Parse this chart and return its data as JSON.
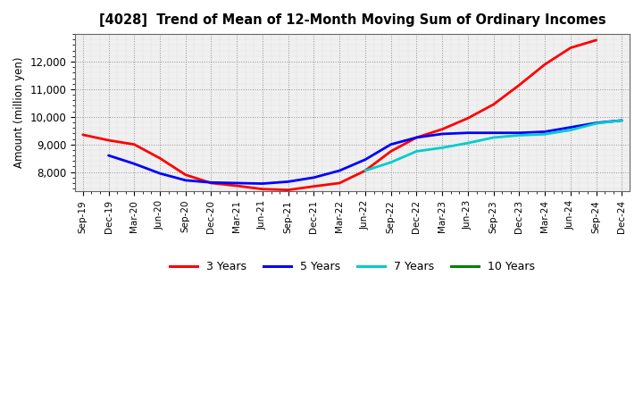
{
  "title": "[4028]  Trend of Mean of 12-Month Moving Sum of Ordinary Incomes",
  "ylabel": "Amount (million yen)",
  "ylim": [
    7300,
    13000
  ],
  "yticks": [
    8000,
    9000,
    10000,
    11000,
    12000
  ],
  "x_labels": [
    "Sep-19",
    "Dec-19",
    "Mar-20",
    "Jun-20",
    "Sep-20",
    "Dec-20",
    "Mar-21",
    "Jun-21",
    "Sep-21",
    "Dec-21",
    "Mar-22",
    "Jun-22",
    "Sep-22",
    "Dec-22",
    "Mar-23",
    "Jun-23",
    "Sep-23",
    "Dec-23",
    "Mar-24",
    "Jun-24",
    "Sep-24",
    "Dec-24"
  ],
  "series": {
    "3 Years": {
      "color": "#ff0000",
      "values": [
        9350,
        9150,
        9000,
        8500,
        7900,
        7600,
        7500,
        7380,
        7350,
        7480,
        7600,
        8050,
        8750,
        9250,
        9550,
        9950,
        10450,
        11150,
        11900,
        12500,
        12780,
        null
      ]
    },
    "5 Years": {
      "color": "#0000ff",
      "values": [
        null,
        8600,
        8300,
        7950,
        7700,
        7620,
        7600,
        7580,
        7650,
        7800,
        8050,
        8450,
        9000,
        9250,
        9380,
        9420,
        9420,
        9420,
        9460,
        9620,
        9780,
        9870
      ]
    },
    "7 Years": {
      "color": "#00cccc",
      "values": [
        null,
        null,
        null,
        null,
        null,
        null,
        null,
        null,
        null,
        null,
        null,
        8050,
        8350,
        8750,
        8880,
        9050,
        9250,
        9330,
        9370,
        9520,
        9760,
        9870
      ]
    },
    "10 Years": {
      "color": "#008000",
      "values": [
        null,
        null,
        null,
        null,
        null,
        null,
        null,
        null,
        null,
        null,
        null,
        null,
        null,
        null,
        null,
        null,
        null,
        null,
        null,
        null,
        null,
        null
      ]
    }
  },
  "legend_labels": [
    "3 Years",
    "5 Years",
    "7 Years",
    "10 Years"
  ],
  "legend_colors": [
    "#ff0000",
    "#0000ff",
    "#00cccc",
    "#008000"
  ],
  "plot_bg_color": "#e8e8e8",
  "fig_bg_color": "#ffffff"
}
